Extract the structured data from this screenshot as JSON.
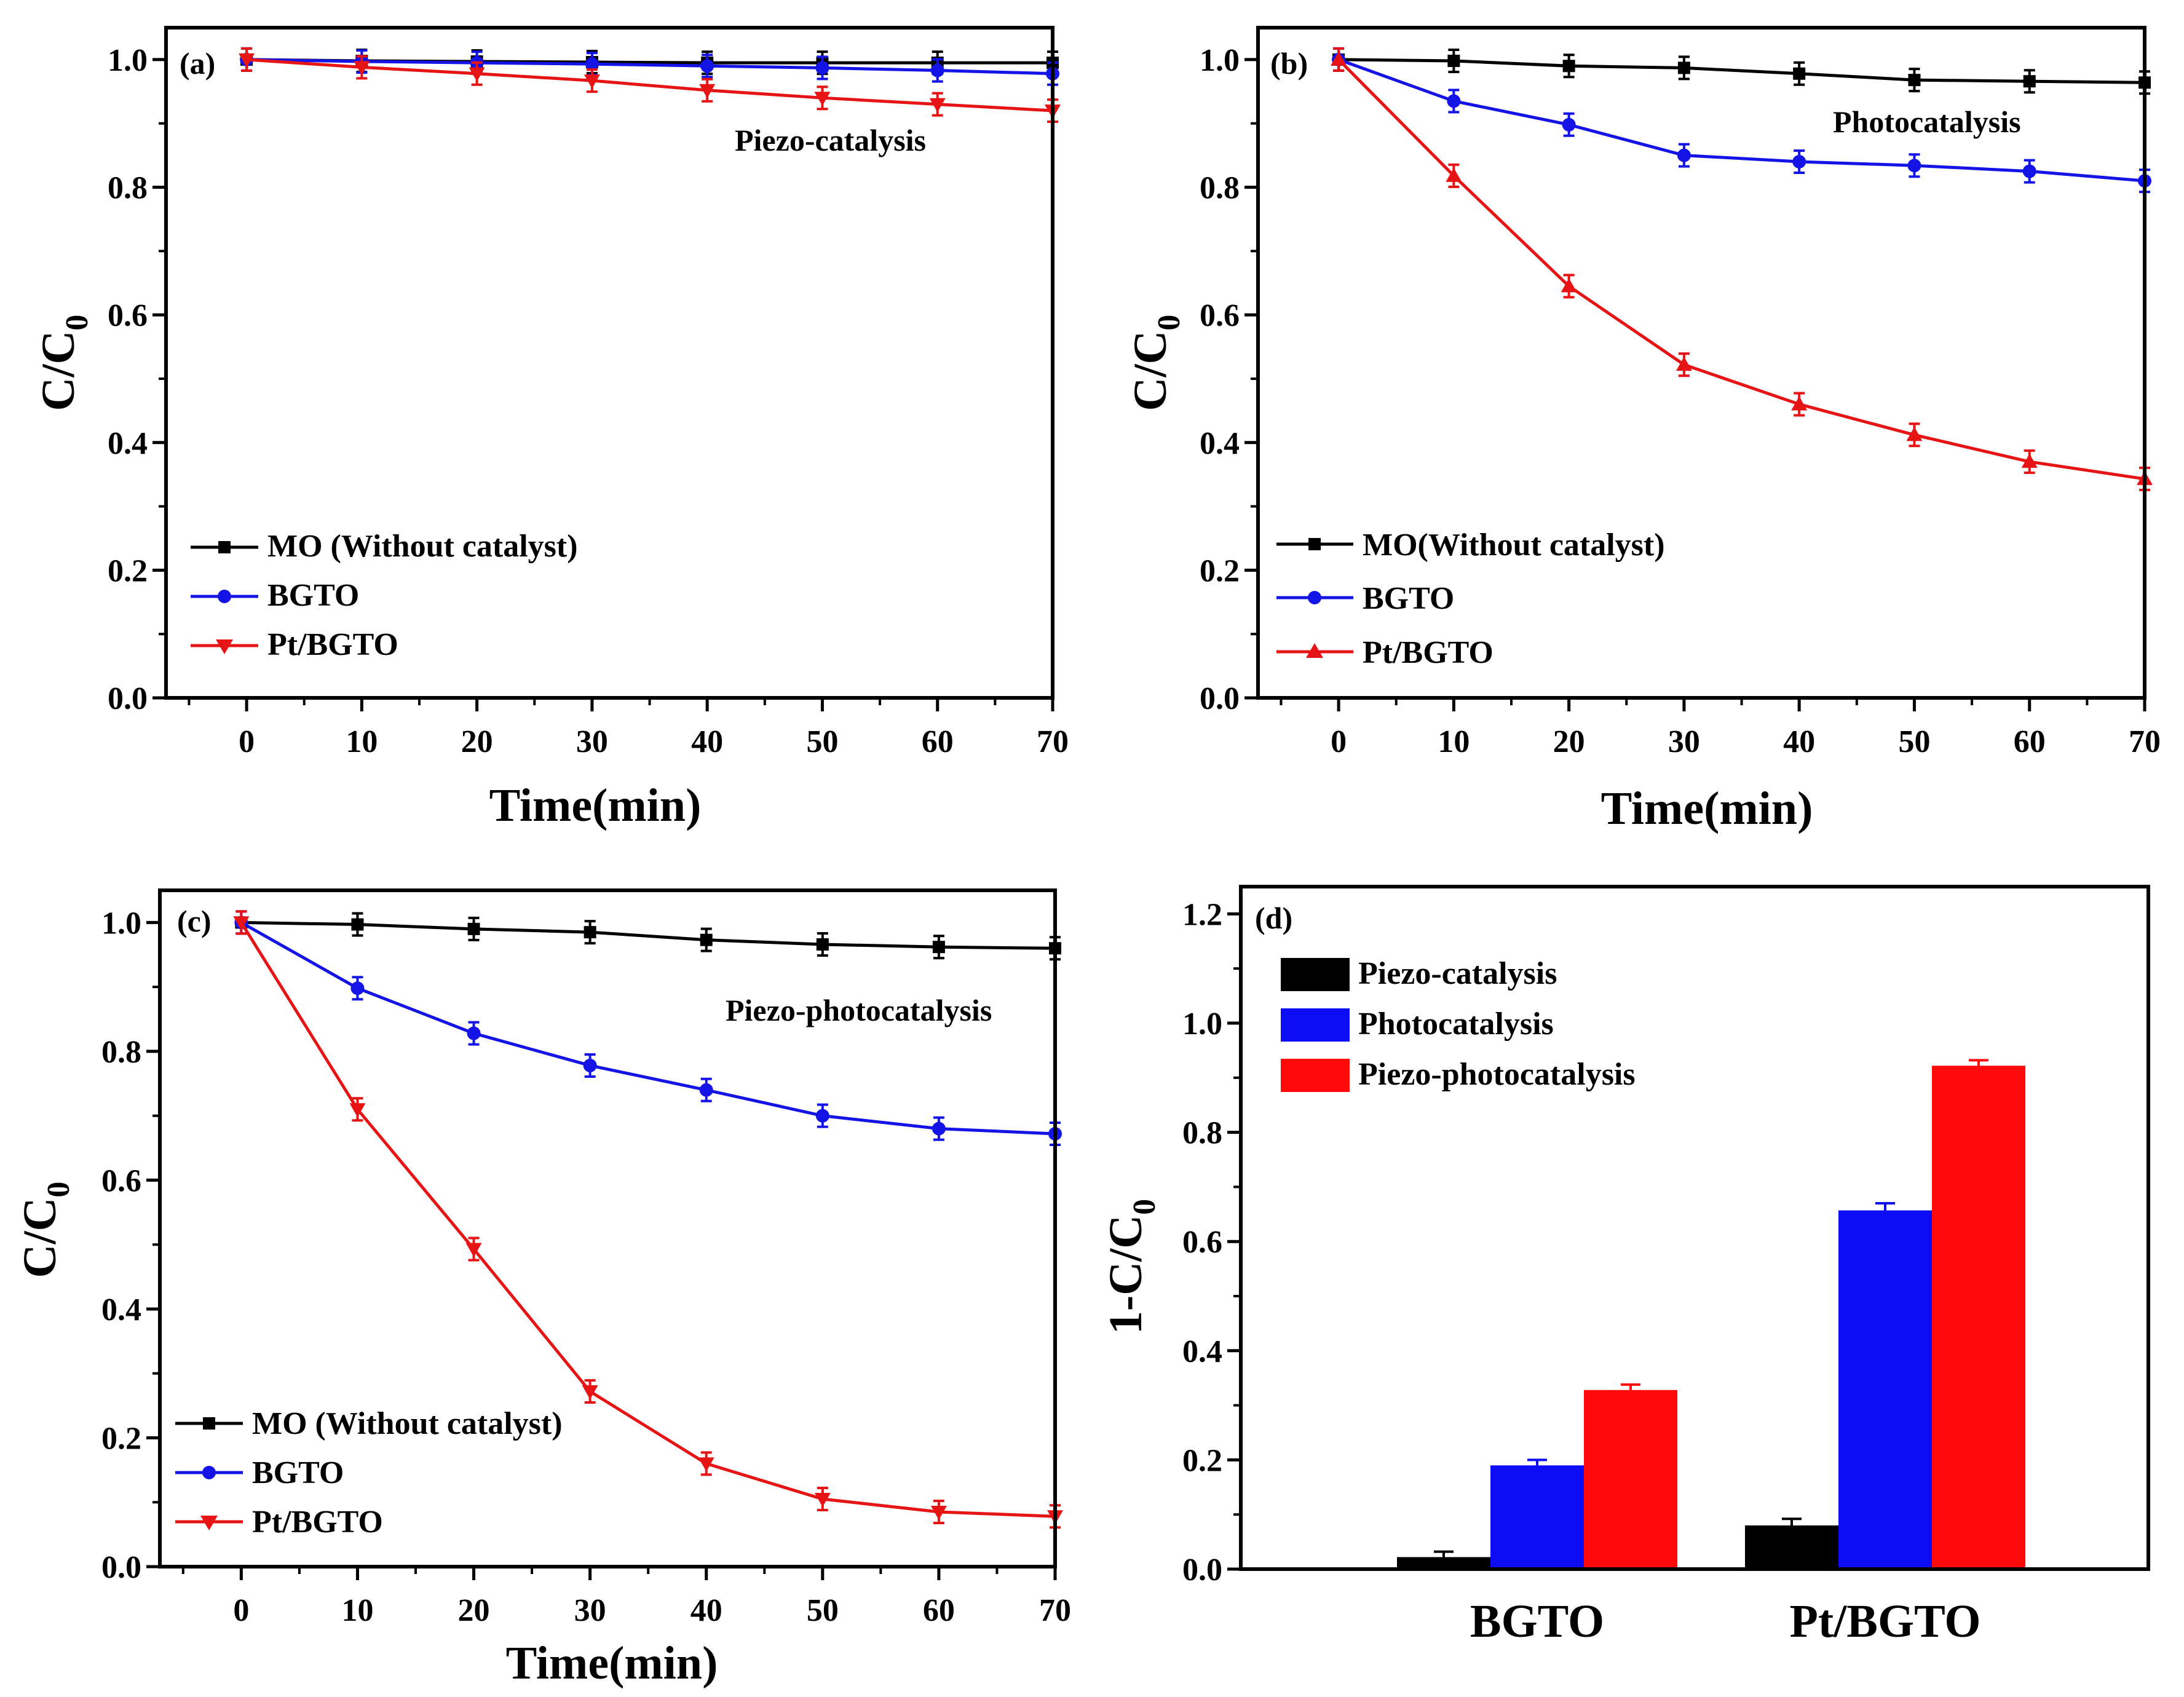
{
  "chart_data": [
    {
      "id": "a",
      "type": "line",
      "panel_label": "(a)",
      "annotation": "Piezo-catalysis",
      "xlabel": "Time(min)",
      "ylabel": "C/C0",
      "ylabel_main": "C/C",
      "ylabel_sub": "0",
      "xlim": [
        -7,
        70
      ],
      "ylim": [
        0,
        1.05
      ],
      "xticks": [
        0,
        10,
        20,
        30,
        40,
        50,
        60,
        70
      ],
      "yticks": [
        0.0,
        0.2,
        0.4,
        0.6,
        0.8,
        1.0
      ],
      "ytick_labels": [
        "0.0",
        "0.2",
        "0.4",
        "0.6",
        "0.8",
        "1.0"
      ],
      "x": [
        0,
        10,
        20,
        30,
        40,
        50,
        60,
        70
      ],
      "series": [
        {
          "name": "MO (Without catalyst)",
          "color": "#000000",
          "marker": "square",
          "values": [
            1.0,
            0.998,
            0.997,
            0.996,
            0.995,
            0.995,
            0.995,
            0.995
          ]
        },
        {
          "name": "BGTO",
          "color": "#1414e6",
          "marker": "circle",
          "values": [
            1.0,
            0.997,
            0.995,
            0.993,
            0.99,
            0.987,
            0.983,
            0.978
          ]
        },
        {
          "name": "Pt/BGTO",
          "color": "#e61414",
          "marker": "triangle-down",
          "values": [
            1.0,
            0.988,
            0.978,
            0.967,
            0.952,
            0.94,
            0.93,
            0.92
          ]
        }
      ]
    },
    {
      "id": "b",
      "type": "line",
      "panel_label": "(b)",
      "annotation": "Photocatalysis",
      "xlabel": "Time(min)",
      "ylabel": "C/C0",
      "ylabel_main": "C/C",
      "ylabel_sub": "0",
      "xlim": [
        -7,
        70
      ],
      "ylim": [
        0,
        1.05
      ],
      "xticks": [
        0,
        10,
        20,
        30,
        40,
        50,
        60,
        70
      ],
      "yticks": [
        0.0,
        0.2,
        0.4,
        0.6,
        0.8,
        1.0
      ],
      "ytick_labels": [
        "0.0",
        "0.2",
        "0.4",
        "0.6",
        "0.8",
        "1.0"
      ],
      "x": [
        0,
        10,
        20,
        30,
        40,
        50,
        60,
        70
      ],
      "series": [
        {
          "name": "MO(Without catalyst)",
          "color": "#000000",
          "marker": "square",
          "values": [
            1.0,
            0.998,
            0.99,
            0.987,
            0.978,
            0.968,
            0.966,
            0.964
          ]
        },
        {
          "name": "BGTO",
          "color": "#1414e6",
          "marker": "circle",
          "values": [
            1.0,
            0.935,
            0.898,
            0.85,
            0.84,
            0.834,
            0.825,
            0.81
          ]
        },
        {
          "name": "Pt/BGTO",
          "color": "#e61414",
          "marker": "triangle-up",
          "values": [
            1.0,
            0.818,
            0.645,
            0.522,
            0.46,
            0.412,
            0.37,
            0.343
          ]
        }
      ]
    },
    {
      "id": "c",
      "type": "line",
      "panel_label": "(c)",
      "annotation": "Piezo-photocatalysis",
      "xlabel": "Time(min)",
      "ylabel": "C/C0",
      "ylabel_main": "C/C",
      "ylabel_sub": "0",
      "xlim": [
        -7,
        70
      ],
      "ylim": [
        0,
        1.05
      ],
      "xticks": [
        0,
        10,
        20,
        30,
        40,
        50,
        60,
        70
      ],
      "yticks": [
        0.0,
        0.2,
        0.4,
        0.6,
        0.8,
        1.0
      ],
      "ytick_labels": [
        "0.0",
        "0.2",
        "0.4",
        "0.6",
        "0.8",
        "1.0"
      ],
      "x": [
        0,
        10,
        20,
        30,
        40,
        50,
        60,
        70
      ],
      "series": [
        {
          "name": "MO (Without catalyst)",
          "color": "#000000",
          "marker": "square",
          "values": [
            1.0,
            0.997,
            0.99,
            0.985,
            0.973,
            0.966,
            0.962,
            0.96
          ]
        },
        {
          "name": "BGTO",
          "color": "#1414e6",
          "marker": "circle",
          "values": [
            1.0,
            0.898,
            0.828,
            0.778,
            0.74,
            0.7,
            0.68,
            0.672
          ]
        },
        {
          "name": "Pt/BGTO",
          "color": "#e61414",
          "marker": "triangle-down",
          "values": [
            1.0,
            0.71,
            0.493,
            0.272,
            0.16,
            0.105,
            0.085,
            0.078
          ]
        }
      ]
    },
    {
      "id": "d",
      "type": "bar",
      "panel_label": "(d)",
      "ylabel": "1-C/C0",
      "ylabel_main": "1-C/C",
      "ylabel_sub": "0",
      "ylim": [
        0,
        1.25
      ],
      "yticks": [
        0.0,
        0.2,
        0.4,
        0.6,
        0.8,
        1.0,
        1.2
      ],
      "ytick_labels": [
        "0.0",
        "0.2",
        "0.4",
        "0.6",
        "0.8",
        "1.0",
        "1.2"
      ],
      "categories": [
        "BGTO",
        "Pt/BGTO"
      ],
      "series": [
        {
          "name": "Piezo-catalysis",
          "color": "#000000",
          "values": [
            0.022,
            0.08
          ],
          "errors": [
            0.01,
            0.012
          ]
        },
        {
          "name": "Photocatalysis",
          "color": "#0c0cf5",
          "values": [
            0.19,
            0.657
          ],
          "errors": [
            0.01,
            0.013
          ]
        },
        {
          "name": "Piezo-photocatalysis",
          "color": "#ff0a0a",
          "values": [
            0.328,
            0.922
          ],
          "errors": [
            0.01,
            0.01
          ]
        }
      ]
    }
  ]
}
